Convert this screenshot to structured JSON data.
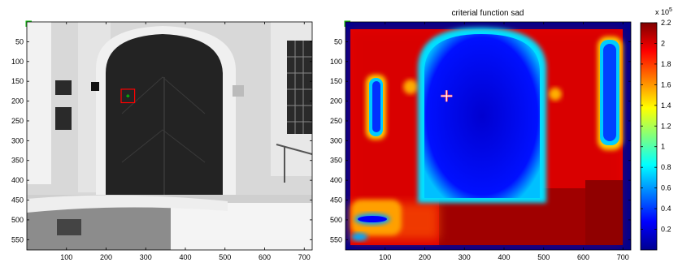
{
  "chart_data": [
    {
      "type": "heatmap",
      "title": "",
      "xlabel": "",
      "ylabel": "",
      "xlim": [
        0,
        720
      ],
      "ylim": [
        0,
        576
      ],
      "xticks": [
        100,
        200,
        300,
        400,
        500,
        600,
        700
      ],
      "yticks": [
        50,
        100,
        150,
        200,
        250,
        300,
        350,
        400,
        450,
        500,
        550
      ],
      "image": "grayscale photograph of a dark wooden double door in an arched stone doorway with snow on the ground",
      "template_box": {
        "x": [
          238,
          272
        ],
        "y": [
          170,
          204
        ]
      },
      "marker": {
        "x": 255,
        "y": 187,
        "shape": "plus",
        "color": "#00cc00"
      }
    },
    {
      "type": "heatmap",
      "title": "criterial function sad",
      "xlabel": "",
      "ylabel": "",
      "xlim": [
        0,
        720
      ],
      "ylim": [
        0,
        576
      ],
      "xticks": [
        100,
        200,
        300,
        400,
        500,
        600,
        700
      ],
      "yticks": [
        50,
        100,
        150,
        200,
        250,
        300,
        350,
        400,
        450,
        500,
        550
      ],
      "marker": {
        "x": 255,
        "y": 187,
        "shape": "plus"
      },
      "colorbar": {
        "colormap": "jet",
        "range": [
          0,
          2.2
        ],
        "ticks": [
          0.2,
          0.4,
          0.6,
          0.8,
          1,
          1.2,
          1.4,
          1.6,
          1.8,
          2,
          2.2
        ],
        "multiplier_label": "x 10",
        "multiplier_exp": "5"
      }
    }
  ]
}
